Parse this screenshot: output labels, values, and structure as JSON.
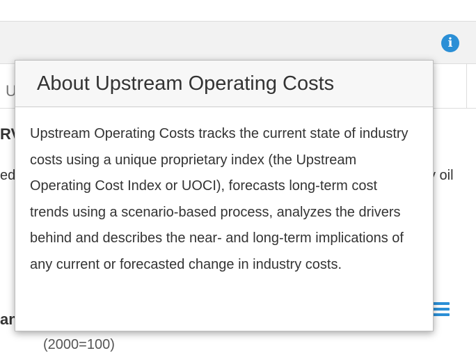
{
  "popover": {
    "title": "About Upstream Operating Costs",
    "body": "Upstream Operating Costs tracks the current state of industry costs using a unique proprietary index (the Upstream Operating Cost Index or UOCI), forecasts long-term cost trends using a scenario-based process, analyzes the drivers behind and describes the near- and long-term implications of any current or forecasted change in industry costs."
  },
  "background": {
    "tab_fragment": "U",
    "left_fragment_1": "RV",
    "left_fragment_2": "ed",
    "right_fragment": "y oil",
    "left_fragment_3": "an",
    "bottom_fragment": "(2000=100)"
  },
  "icons": {
    "info": "info-icon",
    "menu": "hamburger-menu-icon"
  },
  "colors": {
    "accent": "#2b8fd6"
  }
}
